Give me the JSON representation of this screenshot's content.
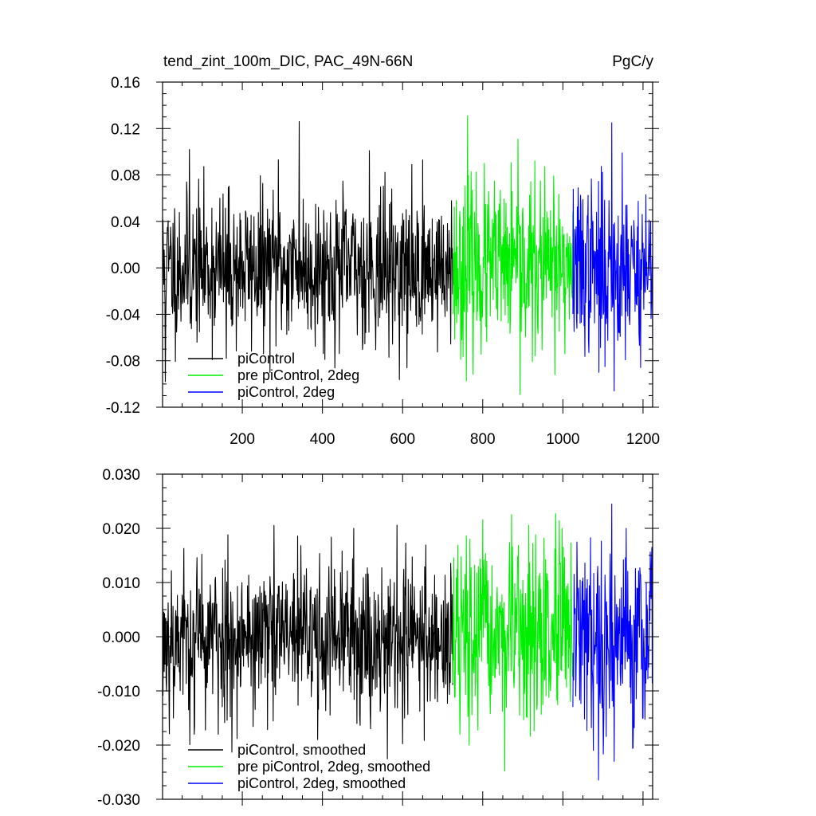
{
  "chart_data": [
    {
      "type": "line",
      "title": "tend_zint_100m_DIC, PAC_49N-66N",
      "units": "PgC/y",
      "xlim": [
        1,
        1224
      ],
      "ylim": [
        -0.12,
        0.16
      ],
      "xticks": [
        200,
        400,
        600,
        800,
        1000,
        1200
      ],
      "xtick_labels": [
        "200",
        "400",
        "600",
        "800",
        "1000",
        "1200"
      ],
      "yticks": [
        -0.12,
        -0.08,
        -0.04,
        0.0,
        0.04,
        0.08,
        0.12,
        0.16
      ],
      "ytick_labels": [
        "-0.12",
        "-0.08",
        "-0.04",
        "0.00",
        "0.04",
        "0.08",
        "0.12",
        "0.16"
      ],
      "grid": false,
      "legend_position": "bottom-left",
      "series": [
        {
          "name": "piControl",
          "color": "#000000",
          "x_range": [
            1,
            725
          ],
          "std": 0.032,
          "seed": 11,
          "spikes": [
            [
              68,
              0.102
            ],
            [
              342,
              0.126
            ],
            [
              290,
              0.093
            ],
            [
              517,
              0.101
            ],
            [
              8,
              -0.098
            ],
            [
              611,
              -0.086
            ],
            [
              160,
              -0.078
            ]
          ]
        },
        {
          "name": "pre piControl, 2deg",
          "color": "#00ee00",
          "x_range": [
            725,
            1025
          ],
          "std": 0.036,
          "seed": 23,
          "spikes": [
            [
              762,
              0.131
            ],
            [
              893,
              -0.109
            ],
            [
              618,
              0.0
            ],
            [
              980,
              -0.092
            ]
          ]
        },
        {
          "name": "piControl, 2deg",
          "color": "#0000ff",
          "x_range": [
            1025,
            1224
          ],
          "std": 0.036,
          "seed": 37,
          "spikes": [
            [
              1122,
              0.125
            ],
            [
              1128,
              -0.106
            ],
            [
              1148,
              0.099
            ],
            [
              1090,
              -0.09
            ]
          ]
        }
      ]
    },
    {
      "type": "line",
      "title": "",
      "xlim": [
        1,
        1224
      ],
      "ylim": [
        -0.03,
        0.03
      ],
      "xticks": [
        200,
        400,
        600,
        800,
        1000,
        1200
      ],
      "yticks": [
        -0.03,
        -0.02,
        -0.01,
        0.0,
        0.01,
        0.02,
        0.03
      ],
      "ytick_labels": [
        "-0.030",
        "-0.020",
        "-0.010",
        "0.000",
        "0.010",
        "0.020",
        "0.030"
      ],
      "grid": false,
      "legend_position": "bottom-left",
      "series": [
        {
          "name": "piControl, smoothed",
          "color": "#000000",
          "x_range": [
            1,
            725
          ],
          "std": 0.0075,
          "seed": 53,
          "spikes": [
            [
              478,
              0.02
            ],
            [
              80,
              -0.018
            ],
            [
              140,
              -0.018
            ],
            [
              388,
              -0.019
            ],
            [
              520,
              -0.017
            ]
          ]
        },
        {
          "name": "pre piControl, 2deg, smoothed",
          "color": "#00ee00",
          "x_range": [
            725,
            1025
          ],
          "std": 0.0085,
          "seed": 67,
          "spikes": [
            [
              768,
              0.018
            ],
            [
              998,
              0.02
            ],
            [
              766,
              -0.02
            ],
            [
              743,
              -0.018
            ]
          ]
        },
        {
          "name": "piControl, 2deg, smoothed",
          "color": "#0000ff",
          "x_range": [
            1025,
            1224
          ],
          "std": 0.0085,
          "seed": 79,
          "spikes": [
            [
              1122,
              0.0245
            ],
            [
              1128,
              -0.023
            ],
            [
              1175,
              -0.0205
            ],
            [
              1158,
              0.02
            ]
          ]
        }
      ]
    }
  ]
}
